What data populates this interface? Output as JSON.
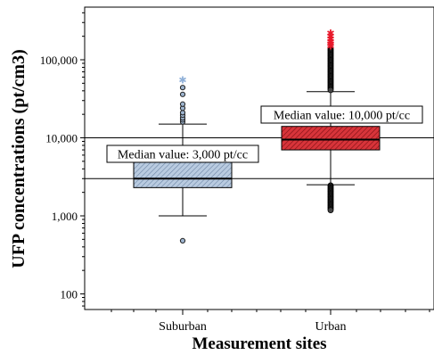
{
  "chart_data": {
    "type": "boxplot",
    "xlabel": "Measurement sites",
    "ylabel": "UFP concentrations (pt/cm3)",
    "yscale": "log",
    "ylim": [
      70,
      500000
    ],
    "yticks": [
      100,
      1000,
      10000,
      100000
    ],
    "ytick_labels": [
      "100",
      "1,000",
      "10,000",
      "100,000"
    ],
    "categories": [
      "Suburban",
      "Urban"
    ],
    "reference_lines": [
      3000,
      10000
    ],
    "boxes": [
      {
        "category": "Suburban",
        "fill": "#9db4cf",
        "whisker_low": 1000,
        "q1": 2300,
        "median": 3000,
        "q3": 4900,
        "whisker_high": 15000,
        "outliers_low": [
          480
        ],
        "outliers_high": [
          16000,
          17000,
          18000,
          19500,
          21000,
          24000,
          27000,
          36000,
          44000
        ],
        "extremes": [
          55000
        ],
        "extreme_color": "#8fb0d8"
      },
      {
        "category": "Urban",
        "fill": "#c8202a",
        "whisker_low": 2500,
        "q1": 7000,
        "median": 9500,
        "q3": 14000,
        "whisker_high": 39000,
        "outlier_band_high": [
          40000,
          140000
        ],
        "outlier_band_low": [
          1150,
          2450
        ],
        "extremes": [
          150000,
          160000,
          172000,
          185000,
          200000,
          220000
        ],
        "extreme_color": "#e8182a"
      }
    ],
    "annotations": [
      {
        "text": "Median value: 3,000 pt/cc",
        "category": "Suburban"
      },
      {
        "text": "Median value: 10,000 pt/cc",
        "category": "Urban"
      }
    ]
  }
}
